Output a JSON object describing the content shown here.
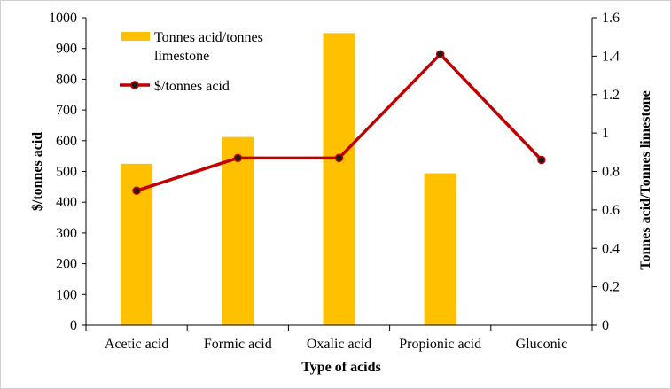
{
  "chart_data": {
    "type": "bar+line",
    "categories": [
      "Acetic acid",
      "Formic acid",
      "Oxalic acid",
      "Propionic acid",
      "Gluconic"
    ],
    "xlabel": "Type of acids",
    "ylabel_left": "$/tonnes acid",
    "ylabel_right": "Tonnes acid/Tonnes limestone",
    "ylim_left": [
      0,
      1000
    ],
    "ylim_right": [
      0,
      1.6
    ],
    "yticks_left": [
      "0",
      "100",
      "200",
      "300",
      "400",
      "500",
      "600",
      "700",
      "800",
      "900",
      "1000"
    ],
    "yticks_right": [
      "0",
      "0.2",
      "0.4",
      "0.6",
      "0.8",
      "1",
      "1.2",
      "1.4",
      "1.6"
    ],
    "grid": false,
    "legend_placement": "top-left",
    "series": [
      {
        "name": "Tonnes acid/tonnes limestone",
        "legend_lines": [
          "Tonnes acid/tonnes",
          "limestone"
        ],
        "type": "bar",
        "axis": "left",
        "color": "#FFC000",
        "values": [
          525,
          612,
          950,
          494,
          null
        ]
      },
      {
        "name": "$/tonnes acid",
        "type": "line",
        "axis": "right",
        "color": "#C00000",
        "marker_color": "#1a1a1a",
        "values": [
          0.7,
          0.87,
          0.87,
          1.41,
          0.86
        ]
      }
    ]
  }
}
